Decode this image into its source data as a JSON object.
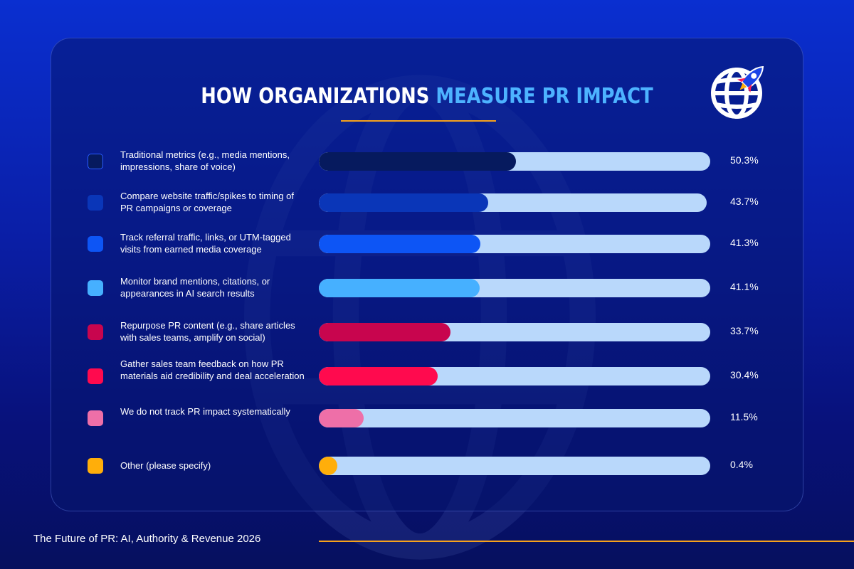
{
  "chart_data": {
    "type": "bar",
    "orientation": "horizontal",
    "title_main": "HOW ORGANIZATIONS",
    "title_accent": "MEASURE PR IMPACT",
    "xlim": [
      0,
      100
    ],
    "unit": "%",
    "categories": [
      "Traditional metrics (e.g., media mentions, impressions, share of voice)",
      "Compare website traffic/spikes to timing of PR campaigns or coverage",
      "Track referral traffic, links, or UTM-tagged visits from earned media coverage",
      "Monitor brand mentions, citations, or appearances in AI search results",
      "Repurpose PR content (e.g., share articles with sales teams, amplify on social)",
      "Gather sales team feedback on how PR materials aid credibility and deal acceleration",
      "We do not track PR impact systematically",
      "Other (please specify)"
    ],
    "values": [
      50.3,
      43.7,
      41.3,
      41.1,
      33.7,
      30.4,
      11.5,
      0.4
    ],
    "value_labels": [
      "50.3%",
      "43.7%",
      "41.3%",
      "41.1%",
      "33.7%",
      "30.4%",
      "11.5%",
      "0.4%"
    ],
    "colors": [
      "#061a5e",
      "#0a36b8",
      "#0d55f5",
      "#46b0ff",
      "#c8054e",
      "#ff0a4e",
      "#ee6fa8",
      "#ffae0a"
    ],
    "track_color": "#b9d8fb"
  },
  "footer": {
    "text": "The Future of PR: AI, Authority & Revenue 2026"
  },
  "logo": {
    "icon": "globe-rocket-icon"
  }
}
